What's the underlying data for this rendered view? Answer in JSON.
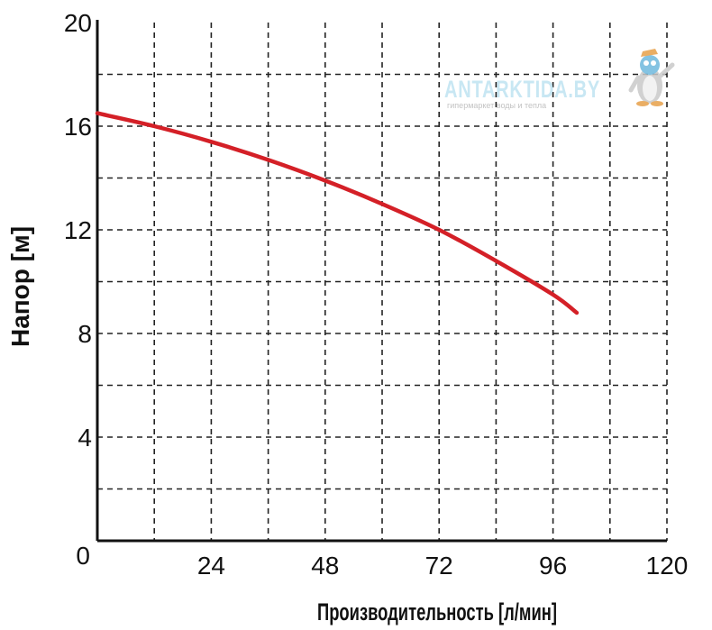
{
  "chart_data": {
    "type": "line",
    "xlabel": "Производительность [л/мин]",
    "ylabel": "Напор [м]",
    "xlim": [
      0,
      120
    ],
    "ylim": [
      0,
      20
    ],
    "x_ticks_labeled": [
      0,
      24,
      48,
      72,
      96,
      120
    ],
    "y_ticks_labeled": [
      4,
      8,
      12,
      16,
      20
    ],
    "grid": true,
    "grid_style": "dashed",
    "grid_step_x": 12,
    "grid_step_y": 2,
    "series": [
      {
        "color": "#d42027",
        "x": [
          0,
          12,
          24,
          36,
          48,
          60,
          72,
          84,
          96,
          101
        ],
        "y": [
          16.5,
          16.0,
          15.4,
          14.7,
          13.9,
          13.0,
          12.0,
          10.8,
          9.5,
          8.8
        ]
      }
    ]
  },
  "watermark": {
    "brand": "ANTARKTIDA.BY",
    "tagline": "гипермаркет воды и тепла"
  }
}
